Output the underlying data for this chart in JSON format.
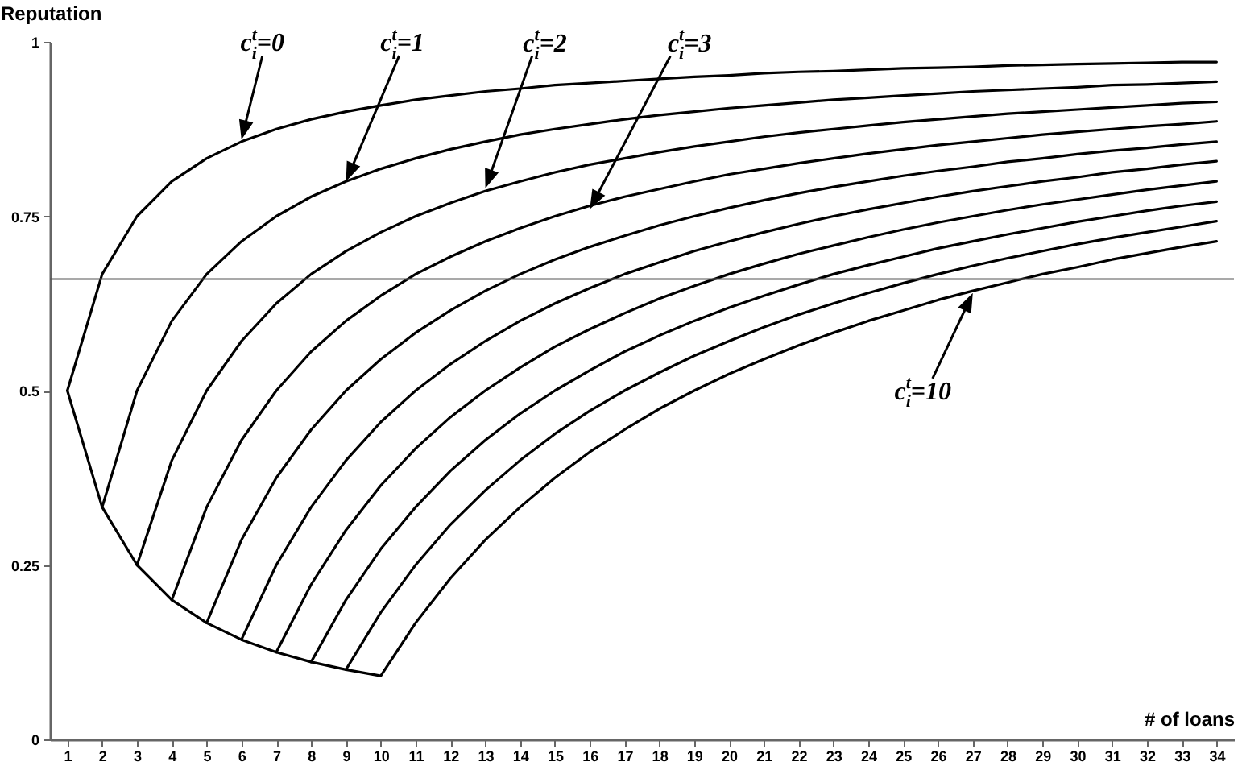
{
  "chart_data": {
    "type": "line",
    "xlabel": "# of loans",
    "ylabel": "Reputation",
    "xlim": [
      0.5,
      34.5
    ],
    "xticks": [
      1,
      2,
      3,
      4,
      5,
      6,
      7,
      8,
      9,
      10,
      11,
      12,
      13,
      14,
      15,
      16,
      17,
      18,
      19,
      20,
      21,
      22,
      23,
      24,
      25,
      26,
      27,
      28,
      29,
      30,
      31,
      32,
      33,
      34
    ],
    "ylim": [
      0,
      1
    ],
    "yticks": [
      0,
      0.25,
      0.5,
      0.75,
      1
    ],
    "line_style": "solid",
    "series": [
      {
        "color": "#000000",
        "x": [
          1,
          2,
          3,
          4,
          5,
          6,
          7,
          8,
          9,
          10,
          11,
          12,
          13,
          14,
          15,
          16,
          17,
          18,
          19,
          20,
          21,
          22,
          23,
          24,
          25,
          26,
          27,
          28,
          29,
          30,
          31,
          32,
          33,
          34
        ],
        "values": [
          0.5,
          0.667,
          0.75,
          0.8,
          0.833,
          0.857,
          0.875,
          0.889,
          0.9,
          0.909,
          0.917,
          0.923,
          0.929,
          0.933,
          0.938,
          0.941,
          0.944,
          0.947,
          0.95,
          0.952,
          0.955,
          0.957,
          0.958,
          0.96,
          0.962,
          0.963,
          0.964,
          0.966,
          0.967,
          0.968,
          0.969,
          0.97,
          0.971,
          0.971
        ]
      },
      {
        "color": "#000000",
        "x": [
          1,
          2,
          3,
          4,
          5,
          6,
          7,
          8,
          9,
          10,
          11,
          12,
          13,
          14,
          15,
          16,
          17,
          18,
          19,
          20,
          21,
          22,
          23,
          24,
          25,
          26,
          27,
          28,
          29,
          30,
          31,
          32,
          33,
          34
        ],
        "values": [
          0.5,
          0.333,
          0.5,
          0.6,
          0.667,
          0.714,
          0.75,
          0.778,
          0.8,
          0.818,
          0.833,
          0.846,
          0.857,
          0.867,
          0.875,
          0.882,
          0.889,
          0.895,
          0.9,
          0.905,
          0.909,
          0.913,
          0.917,
          0.92,
          0.923,
          0.926,
          0.929,
          0.931,
          0.933,
          0.935,
          0.938,
          0.939,
          0.941,
          0.943
        ]
      },
      {
        "color": "#000000",
        "x": [
          2,
          3,
          4,
          5,
          6,
          7,
          8,
          9,
          10,
          11,
          12,
          13,
          14,
          15,
          16,
          17,
          18,
          19,
          20,
          21,
          22,
          23,
          24,
          25,
          26,
          27,
          28,
          29,
          30,
          31,
          32,
          33,
          34
        ],
        "values": [
          0.333,
          0.25,
          0.4,
          0.5,
          0.571,
          0.625,
          0.667,
          0.7,
          0.727,
          0.75,
          0.769,
          0.786,
          0.8,
          0.813,
          0.824,
          0.833,
          0.842,
          0.85,
          0.857,
          0.864,
          0.87,
          0.875,
          0.88,
          0.885,
          0.889,
          0.893,
          0.897,
          0.9,
          0.903,
          0.906,
          0.909,
          0.912,
          0.914
        ]
      },
      {
        "color": "#000000",
        "x": [
          3,
          4,
          5,
          6,
          7,
          8,
          9,
          10,
          11,
          12,
          13,
          14,
          15,
          16,
          17,
          18,
          19,
          20,
          21,
          22,
          23,
          24,
          25,
          26,
          27,
          28,
          29,
          30,
          31,
          32,
          33,
          34
        ],
        "values": [
          0.25,
          0.2,
          0.333,
          0.429,
          0.5,
          0.556,
          0.6,
          0.636,
          0.667,
          0.692,
          0.714,
          0.733,
          0.75,
          0.765,
          0.778,
          0.789,
          0.8,
          0.81,
          0.818,
          0.826,
          0.833,
          0.84,
          0.846,
          0.852,
          0.857,
          0.862,
          0.867,
          0.871,
          0.875,
          0.879,
          0.882,
          0.886
        ]
      },
      {
        "color": "#000000",
        "x": [
          4,
          5,
          6,
          7,
          8,
          9,
          10,
          11,
          12,
          13,
          14,
          15,
          16,
          17,
          18,
          19,
          20,
          21,
          22,
          23,
          24,
          25,
          26,
          27,
          28,
          29,
          30,
          31,
          32,
          33,
          34
        ],
        "values": [
          0.2,
          0.167,
          0.286,
          0.375,
          0.444,
          0.5,
          0.545,
          0.583,
          0.615,
          0.643,
          0.667,
          0.688,
          0.706,
          0.722,
          0.737,
          0.75,
          0.762,
          0.773,
          0.783,
          0.792,
          0.8,
          0.808,
          0.815,
          0.821,
          0.828,
          0.833,
          0.839,
          0.844,
          0.848,
          0.853,
          0.857
        ]
      },
      {
        "color": "#000000",
        "x": [
          5,
          6,
          7,
          8,
          9,
          10,
          11,
          12,
          13,
          14,
          15,
          16,
          17,
          18,
          19,
          20,
          21,
          22,
          23,
          24,
          25,
          26,
          27,
          28,
          29,
          30,
          31,
          32,
          33,
          34
        ],
        "values": [
          0.167,
          0.143,
          0.25,
          0.333,
          0.4,
          0.455,
          0.5,
          0.538,
          0.571,
          0.6,
          0.625,
          0.647,
          0.667,
          0.684,
          0.7,
          0.714,
          0.727,
          0.739,
          0.75,
          0.76,
          0.769,
          0.778,
          0.786,
          0.793,
          0.8,
          0.806,
          0.813,
          0.818,
          0.824,
          0.829
        ]
      },
      {
        "color": "#000000",
        "x": [
          6,
          7,
          8,
          9,
          10,
          11,
          12,
          13,
          14,
          15,
          16,
          17,
          18,
          19,
          20,
          21,
          22,
          23,
          24,
          25,
          26,
          27,
          28,
          29,
          30,
          31,
          32,
          33,
          34
        ],
        "values": [
          0.143,
          0.125,
          0.222,
          0.3,
          0.364,
          0.417,
          0.462,
          0.5,
          0.533,
          0.563,
          0.588,
          0.611,
          0.632,
          0.65,
          0.667,
          0.682,
          0.696,
          0.708,
          0.72,
          0.731,
          0.741,
          0.75,
          0.759,
          0.767,
          0.774,
          0.781,
          0.788,
          0.794,
          0.8
        ]
      },
      {
        "color": "#000000",
        "x": [
          7,
          8,
          9,
          10,
          11,
          12,
          13,
          14,
          15,
          16,
          17,
          18,
          19,
          20,
          21,
          22,
          23,
          24,
          25,
          26,
          27,
          28,
          29,
          30,
          31,
          32,
          33,
          34
        ],
        "values": [
          0.125,
          0.111,
          0.2,
          0.273,
          0.333,
          0.385,
          0.429,
          0.467,
          0.5,
          0.529,
          0.556,
          0.579,
          0.6,
          0.619,
          0.636,
          0.652,
          0.667,
          0.68,
          0.692,
          0.704,
          0.714,
          0.724,
          0.733,
          0.742,
          0.75,
          0.758,
          0.765,
          0.771
        ]
      },
      {
        "color": "#000000",
        "x": [
          8,
          9,
          10,
          11,
          12,
          13,
          14,
          15,
          16,
          17,
          18,
          19,
          20,
          21,
          22,
          23,
          24,
          25,
          26,
          27,
          28,
          29,
          30,
          31,
          32,
          33,
          34
        ],
        "values": [
          0.111,
          0.1,
          0.182,
          0.25,
          0.308,
          0.357,
          0.4,
          0.438,
          0.471,
          0.5,
          0.526,
          0.55,
          0.571,
          0.591,
          0.609,
          0.625,
          0.64,
          0.654,
          0.667,
          0.679,
          0.69,
          0.7,
          0.71,
          0.719,
          0.727,
          0.735,
          0.743
        ]
      },
      {
        "color": "#000000",
        "x": [
          9,
          10,
          11,
          12,
          13,
          14,
          15,
          16,
          17,
          18,
          19,
          20,
          21,
          22,
          23,
          24,
          25,
          26,
          27,
          28,
          29,
          30,
          31,
          32,
          33,
          34
        ],
        "values": [
          0.1,
          0.091,
          0.167,
          0.231,
          0.286,
          0.333,
          0.375,
          0.412,
          0.444,
          0.474,
          0.5,
          0.524,
          0.545,
          0.565,
          0.583,
          0.6,
          0.615,
          0.63,
          0.643,
          0.655,
          0.667,
          0.677,
          0.688,
          0.697,
          0.706,
          0.714
        ]
      }
    ],
    "ref_lines": [
      {
        "axis": "y",
        "value": 0.66,
        "color": "#555555"
      }
    ],
    "annotations": [
      {
        "text": "c$_{i}$$^{t}$=0",
        "x": 6,
        "y": 0.86
      },
      "c$_{i}$$^{t}$=1",
      "c$_{i}$$^{t}$=2",
      "c$_{i}$$^{t}$=3",
      "c$_{i}$$^{t}$=10"
    ]
  }
}
